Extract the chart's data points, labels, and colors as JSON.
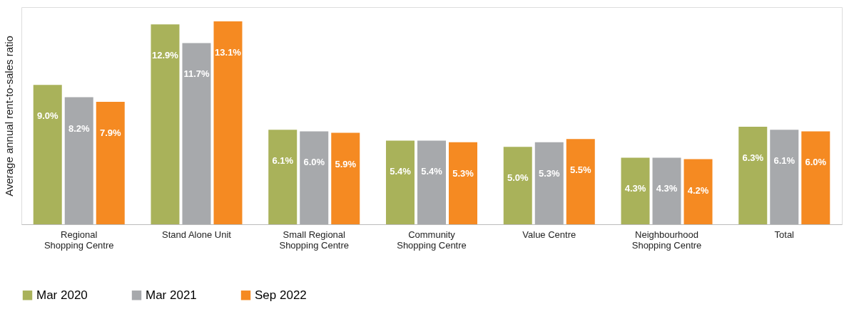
{
  "chart_data": {
    "type": "bar",
    "ylabel": "Average annual rent-to-sales ratio",
    "categories": [
      "Regional Shopping Centre",
      "Stand Alone Unit",
      "Small Regional Shopping Centre",
      "Community Shopping Centre",
      "Value Centre",
      "Neighbourhood Shopping Centre",
      "Total"
    ],
    "series": [
      {
        "name": "Mar 2020",
        "color": "#a9b25a",
        "values": [
          9.0,
          12.9,
          6.1,
          5.4,
          5.0,
          4.3,
          6.3
        ],
        "value_labels": [
          "9.0%",
          "12.9%",
          "6.1%",
          "5.4%",
          "5.0%",
          "4.3%",
          "6.3%"
        ]
      },
      {
        "name": "Mar 2021",
        "color": "#a7a9ac",
        "values": [
          8.2,
          11.7,
          6.0,
          5.4,
          5.3,
          4.3,
          6.1
        ],
        "value_labels": [
          "8.2%",
          "11.7%",
          "6.0%",
          "5.4%",
          "5.3%",
          "4.3%",
          "6.1%"
        ]
      },
      {
        "name": "Sep 2022",
        "color": "#f58a22",
        "values": [
          7.9,
          13.1,
          5.9,
          5.3,
          5.5,
          4.2,
          6.0
        ],
        "value_labels": [
          "7.9%",
          "13.1%",
          "5.9%",
          "5.3%",
          "5.5%",
          "4.2%",
          "6.0%"
        ]
      }
    ],
    "legend": "bottom"
  }
}
